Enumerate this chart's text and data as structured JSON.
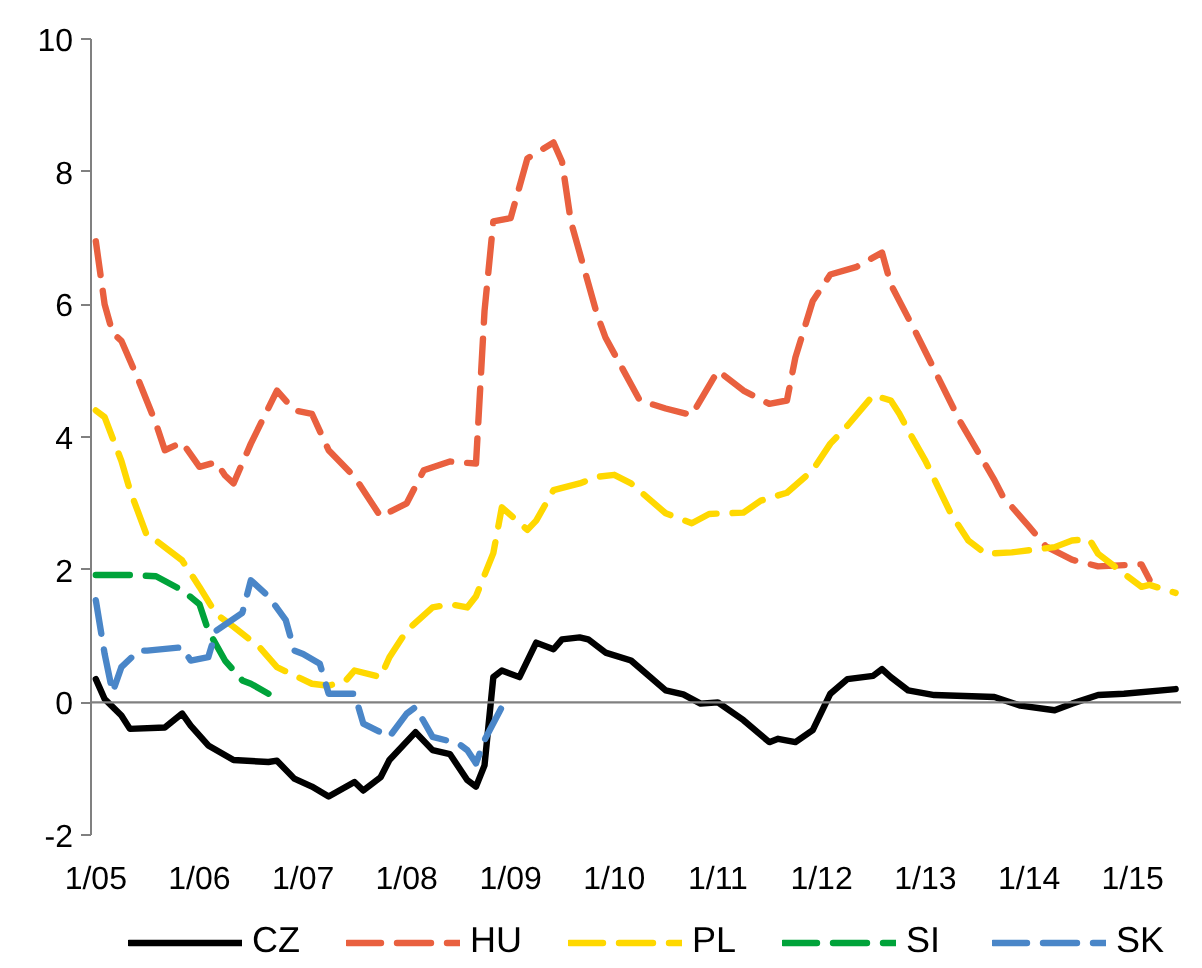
{
  "chart_data": {
    "type": "line",
    "xlim": [
      "2004-12-15",
      "2015-06-20"
    ],
    "xticks": [
      {
        "value": "2005-01",
        "label": "1/05"
      },
      {
        "value": "2006-01",
        "label": "1/06"
      },
      {
        "value": "2007-01",
        "label": "1/07"
      },
      {
        "value": "2008-01",
        "label": "1/08"
      },
      {
        "value": "2009-01",
        "label": "1/09"
      },
      {
        "value": "2010-01",
        "label": "1/10"
      },
      {
        "value": "2011-01",
        "label": "1/11"
      },
      {
        "value": "2012-01",
        "label": "1/12"
      },
      {
        "value": "2013-01",
        "label": "1/13"
      },
      {
        "value": "2014-01",
        "label": "1/14"
      },
      {
        "value": "2015-01",
        "label": "1/15"
      }
    ],
    "ylim": [
      -2,
      10
    ],
    "yticks": [
      -2,
      0,
      2,
      4,
      6,
      8,
      10
    ],
    "grid": false,
    "legend": "bottom",
    "ref_lines": [
      {
        "axis": "y",
        "value": 0,
        "color": "#808080"
      }
    ],
    "series": [
      {
        "name": "CZ",
        "color": "#000000",
        "line_style": "solid",
        "x": [
          "2005-01",
          "2005-02",
          "2005-04",
          "2005-05",
          "2005-09",
          "2005-11",
          "2005-12",
          "2006-02",
          "2006-05",
          "2006-09",
          "2006-10",
          "2006-12",
          "2007-02",
          "2007-04",
          "2007-07",
          "2007-08",
          "2007-10",
          "2007-11",
          "2008-02",
          "2008-04",
          "2008-06",
          "2008-08",
          "2008-09",
          "2008-10",
          "2008-11",
          "2008-12",
          "2009-02",
          "2009-04",
          "2009-06",
          "2009-07",
          "2009-09",
          "2009-10",
          "2009-12",
          "2010-03",
          "2010-07",
          "2010-09",
          "2010-11",
          "2011-01",
          "2011-04",
          "2011-07",
          "2011-08",
          "2011-10",
          "2011-12",
          "2012-02",
          "2012-04",
          "2012-07",
          "2012-08",
          "2012-09",
          "2012-11",
          "2013-02",
          "2013-09",
          "2013-12",
          "2014-04",
          "2014-06",
          "2014-09",
          "2014-12",
          "2015-06"
        ],
        "values": [
          0.35,
          0.05,
          -0.2,
          -0.4,
          -0.38,
          -0.17,
          -0.35,
          -0.65,
          -0.87,
          -0.9,
          -0.88,
          -1.15,
          -1.27,
          -1.42,
          -1.2,
          -1.33,
          -1.13,
          -0.87,
          -0.45,
          -0.72,
          -0.78,
          -1.17,
          -1.27,
          -0.95,
          0.38,
          0.48,
          0.38,
          0.9,
          0.8,
          0.95,
          0.98,
          0.95,
          0.75,
          0.63,
          0.18,
          0.12,
          -0.02,
          0.0,
          -0.27,
          -0.6,
          -0.55,
          -0.6,
          -0.42,
          0.13,
          0.35,
          0.4,
          0.5,
          0.38,
          0.18,
          0.11,
          0.08,
          -0.05,
          -0.12,
          -0.02,
          0.11,
          0.13,
          0.2
        ]
      },
      {
        "name": "HU",
        "color": "#e9603f",
        "line_style": "dashed",
        "x": [
          "2005-01",
          "2005-02",
          "2005-03",
          "2005-04",
          "2005-06",
          "2005-08",
          "2005-09",
          "2005-11",
          "2006-01",
          "2006-03",
          "2006-04",
          "2006-05",
          "2006-07",
          "2006-10",
          "2006-12",
          "2007-02",
          "2007-04",
          "2007-07",
          "2007-10",
          "2008-01",
          "2008-03",
          "2008-06",
          "2008-09",
          "2008-10",
          "2008-11",
          "2009-01",
          "2009-03",
          "2009-06",
          "2009-07",
          "2009-08",
          "2009-11",
          "2009-12",
          "2010-04",
          "2010-07",
          "2010-10",
          "2011-01",
          "2011-04",
          "2011-07",
          "2011-09",
          "2011-10",
          "2011-12",
          "2012-02",
          "2012-05",
          "2012-08",
          "2012-09",
          "2012-12",
          "2013-05",
          "2013-09",
          "2013-10",
          "2014-01",
          "2014-03",
          "2014-06",
          "2014-09",
          "2015-02",
          "2015-03"
        ],
        "values": [
          6.95,
          6.0,
          5.57,
          5.45,
          4.85,
          4.2,
          3.8,
          3.92,
          3.55,
          3.62,
          3.42,
          3.3,
          3.9,
          4.7,
          4.4,
          4.35,
          3.8,
          3.4,
          2.8,
          3.0,
          3.5,
          3.63,
          3.6,
          5.9,
          7.25,
          7.3,
          8.2,
          8.44,
          8.15,
          7.25,
          5.85,
          5.5,
          4.55,
          4.43,
          4.33,
          5.0,
          4.7,
          4.5,
          4.55,
          5.2,
          6.05,
          6.45,
          6.56,
          6.78,
          6.3,
          5.55,
          4.25,
          3.35,
          3.1,
          2.65,
          2.35,
          2.15,
          2.05,
          2.08,
          1.85
        ]
      },
      {
        "name": "PL",
        "color": "#ffd800",
        "line_style": "dashed",
        "x": [
          "2005-01",
          "2005-02",
          "2005-04",
          "2005-05",
          "2005-07",
          "2005-08",
          "2005-11",
          "2006-01",
          "2006-03",
          "2006-05",
          "2006-08",
          "2006-10",
          "2007-02",
          "2007-04",
          "2007-06",
          "2007-07",
          "2007-10",
          "2007-11",
          "2008-01",
          "2008-04",
          "2008-06",
          "2008-08",
          "2008-09",
          "2008-11",
          "2008-12",
          "2009-03",
          "2009-04",
          "2009-06",
          "2009-09",
          "2009-11",
          "2010-01",
          "2010-03",
          "2010-07",
          "2010-10",
          "2010-12",
          "2011-04",
          "2011-06",
          "2011-09",
          "2011-12",
          "2012-02",
          "2012-04",
          "2012-07",
          "2012-09",
          "2012-10",
          "2012-11",
          "2013-01",
          "2013-04",
          "2013-06",
          "2013-08",
          "2013-11",
          "2014-04",
          "2014-06",
          "2014-08",
          "2014-09",
          "2014-12",
          "2015-02",
          "2015-03",
          "2015-06"
        ],
        "values": [
          4.4,
          4.3,
          3.64,
          3.2,
          2.5,
          2.44,
          2.14,
          1.74,
          1.33,
          1.14,
          0.83,
          0.53,
          0.28,
          0.25,
          0.33,
          0.48,
          0.38,
          0.68,
          1.08,
          1.43,
          1.48,
          1.43,
          1.6,
          2.25,
          2.94,
          2.6,
          2.74,
          3.2,
          3.3,
          3.4,
          3.43,
          3.3,
          2.85,
          2.7,
          2.84,
          2.86,
          3.04,
          3.16,
          3.5,
          3.9,
          4.17,
          4.63,
          4.55,
          4.35,
          4.1,
          3.64,
          2.84,
          2.44,
          2.24,
          2.26,
          2.34,
          2.44,
          2.46,
          2.24,
          1.94,
          1.74,
          1.77,
          1.65
        ]
      },
      {
        "name": "SI",
        "color": "#00a33a",
        "line_style": "dashed",
        "x": [
          "2005-01",
          "2005-05",
          "2005-08",
          "2005-11",
          "2006-01",
          "2006-02",
          "2006-04",
          "2006-06",
          "2006-07",
          "2006-09"
        ],
        "values": [
          1.92,
          1.92,
          1.9,
          1.69,
          1.48,
          1.08,
          0.63,
          0.33,
          0.28,
          0.13
        ]
      },
      {
        "name": "SK",
        "color": "#4a86c8",
        "line_style": "dashed",
        "x": [
          "2005-01",
          "2005-02",
          "2005-03",
          "2005-04",
          "2005-06",
          "2005-07",
          "2005-11",
          "2005-12",
          "2006-02",
          "2006-03",
          "2006-06",
          "2006-07",
          "2006-09",
          "2006-11",
          "2006-12",
          "2007-01",
          "2007-03",
          "2007-04",
          "2007-07",
          "2007-08",
          "2007-11",
          "2008-01",
          "2008-02",
          "2008-04",
          "2008-07",
          "2008-08",
          "2008-09",
          "2008-10",
          "2008-12"
        ],
        "values": [
          1.54,
          0.73,
          0.15,
          0.53,
          0.78,
          0.78,
          0.83,
          0.63,
          0.68,
          1.08,
          1.35,
          1.84,
          1.6,
          1.24,
          0.78,
          0.73,
          0.58,
          0.13,
          0.13,
          -0.32,
          -0.52,
          -0.17,
          -0.07,
          -0.52,
          -0.62,
          -0.72,
          -0.92,
          -0.57,
          -0.07
        ]
      }
    ]
  }
}
